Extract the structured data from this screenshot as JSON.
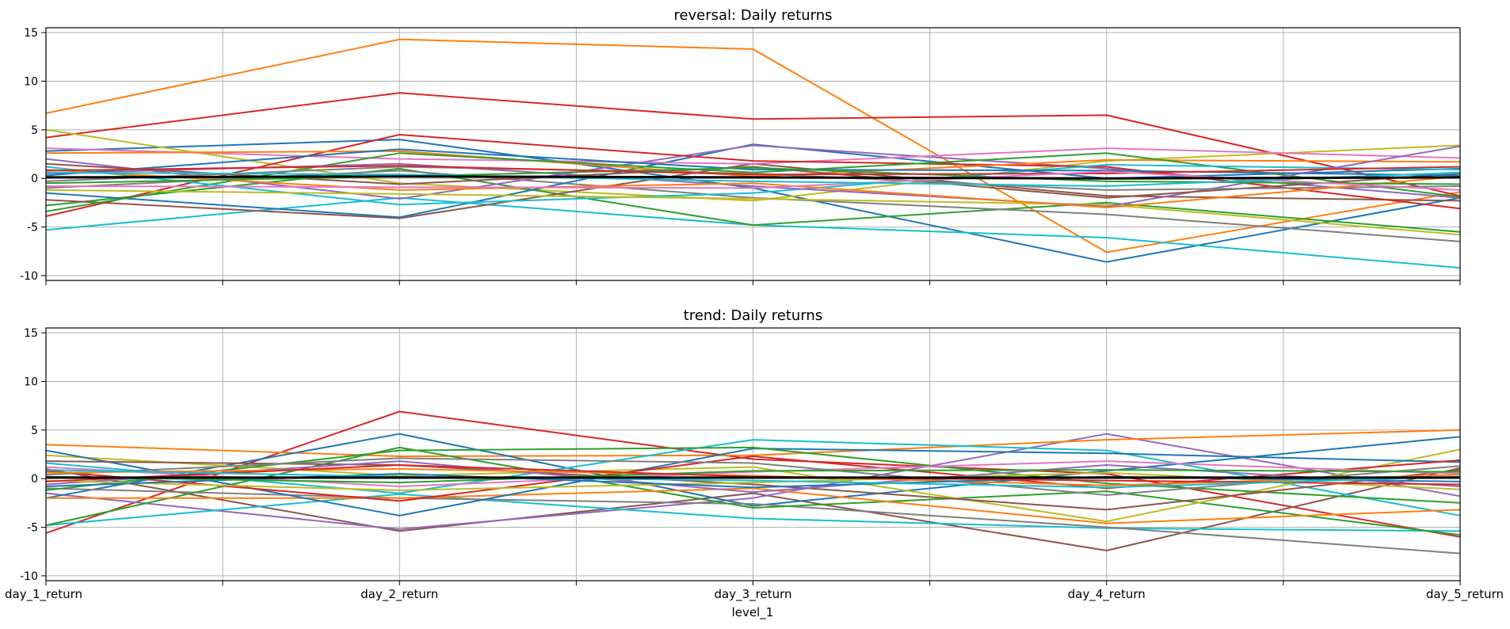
{
  "figure": {
    "xlabel": "level_1"
  },
  "chart_data": [
    {
      "type": "line",
      "title": "reversal: Daily returns",
      "x": [
        "day_1_return",
        "day_2_return",
        "day_3_return",
        "day_4_return",
        "day_5_return"
      ],
      "ylim": [
        -10.5,
        15.5
      ],
      "yticks": [
        -10,
        -5,
        0,
        5,
        10,
        15
      ],
      "grid": true,
      "legend": "none",
      "series": [
        {
          "color": "#ff7f0e",
          "values": [
            6.7,
            14.3,
            13.3,
            -7.6,
            -1.4
          ]
        },
        {
          "color": "#d62728",
          "values": [
            4.2,
            8.8,
            6.1,
            6.5,
            -1.8
          ]
        },
        {
          "color": "#1f77b4",
          "values": [
            2.8,
            4.0,
            -1.0,
            -8.6,
            -2.0
          ]
        },
        {
          "color": "#bcbd22",
          "values": [
            5.0,
            -0.5,
            -2.3,
            1.8,
            3.4
          ]
        },
        {
          "color": "#17becf",
          "values": [
            -5.3,
            -2.0,
            -4.8,
            -6.1,
            -9.2
          ]
        },
        {
          "color": "#2ca02c",
          "values": [
            -2.8,
            1.0,
            -4.8,
            -2.5,
            -5.5
          ]
        },
        {
          "color": "#7f7f7f",
          "values": [
            -1.0,
            0.8,
            -2.0,
            -3.7,
            -6.5
          ]
        },
        {
          "color": "#8c564b",
          "values": [
            -2.2,
            -4.1,
            1.5,
            -1.8,
            -2.3
          ]
        },
        {
          "color": "#1f77b4",
          "values": [
            -1.5,
            -4.0,
            3.5,
            0.0,
            1.0
          ]
        },
        {
          "color": "#9467bd",
          "values": [
            2.0,
            -2.1,
            3.4,
            1.0,
            -2.0
          ]
        },
        {
          "color": "#e377c2",
          "values": [
            3.1,
            2.0,
            1.5,
            3.1,
            2.1
          ]
        },
        {
          "color": "#d62728",
          "values": [
            -3.9,
            4.5,
            1.8,
            1.2,
            -3.1
          ]
        },
        {
          "color": "#ff7f0e",
          "values": [
            2.6,
            2.8,
            0.2,
            1.9,
            1.7
          ]
        },
        {
          "color": "#2ca02c",
          "values": [
            -3.4,
            2.6,
            0.6,
            2.6,
            -1.9
          ]
        },
        {
          "color": "#17becf",
          "values": [
            1.2,
            -2.7,
            -1.5,
            1.4,
            0.9
          ]
        },
        {
          "color": "#bcbd22",
          "values": [
            -1.2,
            -1.6,
            -2.1,
            -2.7,
            -5.8
          ]
        },
        {
          "color": "#9467bd",
          "values": [
            0.5,
            1.5,
            -0.8,
            -2.9,
            3.3
          ]
        },
        {
          "color": "#8c564b",
          "values": [
            1.5,
            -0.6,
            1.2,
            -2.0,
            0.5
          ]
        },
        {
          "color": "#7f7f7f",
          "values": [
            -0.3,
            1.2,
            0.5,
            -1.2,
            -0.8
          ]
        },
        {
          "color": "#ff7f0e",
          "values": [
            0.9,
            -1.2,
            -0.5,
            -3.0,
            0.2
          ]
        },
        {
          "color": "#1f77b4",
          "values": [
            0.3,
            3.0,
            0.9,
            0.8,
            0.3
          ]
        },
        {
          "color": "#2ca02c",
          "values": [
            -0.5,
            0.2,
            1.1,
            -0.3,
            -0.6
          ]
        },
        {
          "color": "#d62728",
          "values": [
            0.8,
            1.3,
            0.4,
            0.5,
            1.2
          ]
        },
        {
          "color": "#e377c2",
          "values": [
            -0.8,
            -0.9,
            -1.0,
            0.7,
            -1.2
          ]
        },
        {
          "color": "#17becf",
          "values": [
            0.6,
            0.4,
            -0.3,
            -0.8,
            0.6
          ]
        },
        {
          "color": "#000000",
          "values": [
            0.1,
            0.2,
            0.1,
            0.0,
            0.1
          ]
        }
      ]
    },
    {
      "type": "line",
      "title": "trend: Daily returns",
      "x": [
        "day_1_return",
        "day_2_return",
        "day_3_return",
        "day_4_return",
        "day_5_return"
      ],
      "ylim": [
        -10.5,
        15.5
      ],
      "yticks": [
        -10,
        -5,
        0,
        5,
        10,
        15
      ],
      "grid": true,
      "legend": "none",
      "series": [
        {
          "color": "#d62728",
          "values": [
            -5.6,
            6.9,
            2.0,
            0.5,
            -6.0
          ]
        },
        {
          "color": "#8c564b",
          "values": [
            1.0,
            -5.4,
            -1.5,
            -7.4,
            1.1
          ]
        },
        {
          "color": "#9467bd",
          "values": [
            -1.5,
            -5.2,
            -2.0,
            4.6,
            -1.8
          ]
        },
        {
          "color": "#ff7f0e",
          "values": [
            3.5,
            2.3,
            2.4,
            4.0,
            5.0
          ]
        },
        {
          "color": "#1f77b4",
          "values": [
            -2.0,
            4.6,
            -2.8,
            0.8,
            4.3
          ]
        },
        {
          "color": "#17becf",
          "values": [
            -4.8,
            -1.6,
            -4.1,
            -5.1,
            -5.4
          ]
        },
        {
          "color": "#7f7f7f",
          "values": [
            -1.0,
            -2.0,
            -2.6,
            -5.0,
            -7.7
          ]
        },
        {
          "color": "#2ca02c",
          "values": [
            -4.8,
            3.2,
            -3.0,
            -1.3,
            -5.8
          ]
        },
        {
          "color": "#17becf",
          "values": [
            1.6,
            -1.5,
            4.0,
            2.9,
            -3.8
          ]
        },
        {
          "color": "#bcbd22",
          "values": [
            2.4,
            0.3,
            1.2,
            -4.4,
            3.0
          ]
        },
        {
          "color": "#ff7f0e",
          "values": [
            -2.0,
            -2.0,
            -1.0,
            -4.6,
            -3.2
          ]
        },
        {
          "color": "#1f77b4",
          "values": [
            2.9,
            -3.8,
            3.1,
            2.6,
            1.7
          ]
        },
        {
          "color": "#d62728",
          "values": [
            0.8,
            -2.3,
            2.3,
            -1.0,
            1.9
          ]
        },
        {
          "color": "#2ca02c",
          "values": [
            -1.2,
            2.9,
            3.2,
            -0.5,
            -2.5
          ]
        },
        {
          "color": "#8c564b",
          "values": [
            1.8,
            1.4,
            -0.6,
            -3.2,
            0.9
          ]
        },
        {
          "color": "#9467bd",
          "values": [
            -0.6,
            1.8,
            -1.4,
            1.4,
            -0.8
          ]
        },
        {
          "color": "#e377c2",
          "values": [
            1.2,
            -0.8,
            0.7,
            1.8,
            0.5
          ]
        },
        {
          "color": "#7f7f7f",
          "values": [
            0.4,
            2.1,
            1.6,
            -1.7,
            1.3
          ]
        },
        {
          "color": "#bcbd22",
          "values": [
            -0.2,
            -1.2,
            -0.4,
            0.6,
            -1.1
          ]
        },
        {
          "color": "#ff7f0e",
          "values": [
            0.6,
            1.0,
            0.3,
            -0.7,
            0.4
          ]
        },
        {
          "color": "#1f77b4",
          "values": [
            -0.8,
            0.5,
            -0.9,
            0.2,
            -0.3
          ]
        },
        {
          "color": "#2ca02c",
          "values": [
            0.2,
            -0.4,
            0.8,
            0.9,
            0.7
          ]
        },
        {
          "color": "#d62728",
          "values": [
            -0.3,
            1.4,
            0.2,
            -0.2,
            -0.6
          ]
        },
        {
          "color": "#17becf",
          "values": [
            0.9,
            0.2,
            -0.2,
            -0.9,
            0.2
          ]
        },
        {
          "color": "#000000",
          "values": [
            0.1,
            0.1,
            0.1,
            0.1,
            0.1
          ]
        }
      ]
    }
  ]
}
